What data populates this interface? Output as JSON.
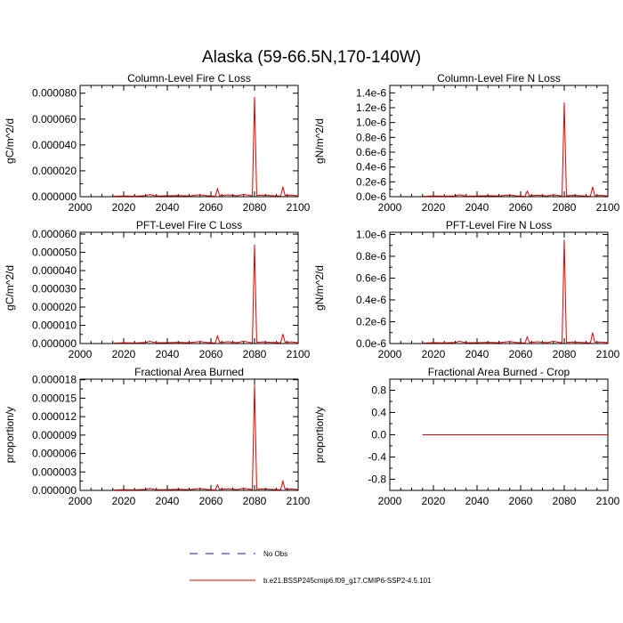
{
  "title": "Alaska (59-66.5N,170-140W)",
  "colors": {
    "series": "#e00000",
    "obs": "#1a1aaa",
    "axis": "#000000"
  },
  "legend": {
    "obs_label": "No Obs",
    "model_label": "b.e21.BSSP245cmip6.f09_g17.CMIP6-SSP2-4.5.101"
  },
  "chart_data": [
    {
      "type": "line",
      "title": "Column-Level Fire C Loss",
      "ylabel": "gC/m^2/d",
      "xlim": [
        2000,
        2100
      ],
      "ylim": [
        0,
        8.6e-05
      ],
      "x_ticks": [
        "2000",
        "2020",
        "2040",
        "2060",
        "2080",
        "2100"
      ],
      "y_ticks": [
        {
          "value": 0,
          "label": "0.000000"
        },
        {
          "value": 2e-05,
          "label": "0.000020"
        },
        {
          "value": 4e-05,
          "label": "0.000040"
        },
        {
          "value": 6e-05,
          "label": "0.000060"
        },
        {
          "value": 8e-05,
          "label": "0.000080"
        }
      ],
      "series": [
        {
          "x": [
            2015,
            2020,
            2025,
            2030,
            2032,
            2035,
            2040,
            2045,
            2050,
            2055,
            2058,
            2062,
            2063,
            2064,
            2068,
            2072,
            2075,
            2079,
            2080,
            2081,
            2084,
            2088,
            2092,
            2093,
            2094,
            2097,
            2100
          ],
          "y": [
            3e-07,
            6e-07,
            4e-07,
            8e-07,
            1.6e-06,
            5e-07,
            7e-07,
            9e-07,
            6e-07,
            1.5e-06,
            8e-07,
            4e-07,
            6.2e-06,
            8e-07,
            1.4e-06,
            7e-07,
            1.8e-06,
            6e-07,
            7.71e-05,
            9e-07,
            1.2e-06,
            8e-07,
            5e-07,
            7.7e-06,
            1e-06,
            1.2e-06,
            6e-07
          ]
        }
      ]
    },
    {
      "type": "line",
      "title": "Column-Level Fire N Loss",
      "ylabel": "gN/m^2/d",
      "xlim": [
        2000,
        2100
      ],
      "ylim": [
        0,
        1.5e-06
      ],
      "x_ticks": [
        "2000",
        "2020",
        "2040",
        "2060",
        "2080",
        "2100"
      ],
      "y_ticks": [
        {
          "value": 0,
          "label": "0.0e-6"
        },
        {
          "value": 2e-07,
          "label": "0.2e-6"
        },
        {
          "value": 4e-07,
          "label": "0.4e-6"
        },
        {
          "value": 6e-07,
          "label": "0.6e-6"
        },
        {
          "value": 8e-07,
          "label": "0.8e-6"
        },
        {
          "value": 1e-06,
          "label": "1.0e-6"
        },
        {
          "value": 1.2e-06,
          "label": "1.2e-6"
        },
        {
          "value": 1.4e-06,
          "label": "1.4e-6"
        }
      ],
      "series": [
        {
          "x": [
            2015,
            2020,
            2025,
            2030,
            2032,
            2035,
            2040,
            2045,
            2050,
            2055,
            2058,
            2062,
            2063,
            2064,
            2068,
            2072,
            2075,
            2079,
            2080,
            2081,
            2084,
            2088,
            2092,
            2093,
            2094,
            2097,
            2100
          ],
          "y": [
            5e-09,
            1e-08,
            7e-09,
            1.2e-08,
            2.5e-08,
            8e-09,
            1e-08,
            1.4e-08,
            1e-08,
            2.2e-08,
            1.2e-08,
            6e-09,
            7.5e-08,
            1.2e-08,
            2e-08,
            1e-08,
            2.6e-08,
            9e-09,
            1.27e-06,
            1.3e-08,
            1.8e-08,
            1.2e-08,
            8e-09,
            1.3e-07,
            1.5e-08,
            1.8e-08,
            9e-09
          ]
        }
      ]
    },
    {
      "type": "line",
      "title": "PFT-Level Fire C Loss",
      "ylabel": "gC/m^2/d",
      "xlim": [
        2000,
        2100
      ],
      "ylim": [
        0,
        6.1e-05
      ],
      "x_ticks": [
        "2000",
        "2020",
        "2040",
        "2060",
        "2080",
        "2100"
      ],
      "y_ticks": [
        {
          "value": 0,
          "label": "0.000000"
        },
        {
          "value": 1e-05,
          "label": "0.000010"
        },
        {
          "value": 2e-05,
          "label": "0.000020"
        },
        {
          "value": 3e-05,
          "label": "0.000030"
        },
        {
          "value": 4e-05,
          "label": "0.000040"
        },
        {
          "value": 5e-05,
          "label": "0.000050"
        },
        {
          "value": 6e-05,
          "label": "0.000060"
        }
      ],
      "series": [
        {
          "x": [
            2015,
            2020,
            2025,
            2030,
            2032,
            2035,
            2040,
            2045,
            2050,
            2055,
            2058,
            2062,
            2063,
            2064,
            2068,
            2072,
            2075,
            2079,
            2080,
            2081,
            2084,
            2088,
            2092,
            2093,
            2094,
            2097,
            2100
          ],
          "y": [
            2e-07,
            4e-07,
            3e-07,
            6e-07,
            1.2e-06,
            4e-07,
            5e-07,
            7e-07,
            5e-07,
            1.1e-06,
            6e-07,
            3e-07,
            4.2e-06,
            6e-07,
            1e-06,
            5e-07,
            1.3e-06,
            4e-07,
            5.42e-05,
            6e-07,
            9e-07,
            6e-07,
            4e-07,
            5.2e-06,
            7e-07,
            9e-07,
            4e-07
          ]
        }
      ]
    },
    {
      "type": "line",
      "title": "PFT-Level Fire N Loss",
      "ylabel": "gN/m^2/d",
      "xlim": [
        2000,
        2100
      ],
      "ylim": [
        0,
        1.02e-06
      ],
      "x_ticks": [
        "2000",
        "2020",
        "2040",
        "2060",
        "2080",
        "2100"
      ],
      "y_ticks": [
        {
          "value": 0,
          "label": "0.0e-6"
        },
        {
          "value": 2e-07,
          "label": "0.2e-6"
        },
        {
          "value": 4e-07,
          "label": "0.4e-6"
        },
        {
          "value": 6e-07,
          "label": "0.6e-6"
        },
        {
          "value": 8e-07,
          "label": "0.8e-6"
        },
        {
          "value": 1e-06,
          "label": "1.0e-6"
        }
      ],
      "series": [
        {
          "x": [
            2015,
            2020,
            2025,
            2030,
            2032,
            2035,
            2040,
            2045,
            2050,
            2055,
            2058,
            2062,
            2063,
            2064,
            2068,
            2072,
            2075,
            2079,
            2080,
            2081,
            2084,
            2088,
            2092,
            2093,
            2094,
            2097,
            2100
          ],
          "y": [
            4e-09,
            8e-09,
            6e-09,
            1e-08,
            2e-08,
            7e-09,
            8e-09,
            1.1e-08,
            8e-09,
            1.8e-08,
            1e-08,
            5e-09,
            6e-08,
            1e-08,
            1.6e-08,
            8e-09,
            2e-08,
            7e-09,
            9.5e-07,
            1e-08,
            1.4e-08,
            1e-08,
            6e-09,
            1e-07,
            1.2e-08,
            1.4e-08,
            7e-09
          ]
        }
      ]
    },
    {
      "type": "line",
      "title": "Fractional Area Burned",
      "ylabel": "proportion/y",
      "xlim": [
        2000,
        2100
      ],
      "ylim": [
        0,
        1.81e-05
      ],
      "x_ticks": [
        "2000",
        "2020",
        "2040",
        "2060",
        "2080",
        "2100"
      ],
      "y_ticks": [
        {
          "value": 0,
          "label": "0.000000"
        },
        {
          "value": 3e-06,
          "label": "0.000003"
        },
        {
          "value": 6e-06,
          "label": "0.000006"
        },
        {
          "value": 9e-06,
          "label": "0.000009"
        },
        {
          "value": 1.2e-05,
          "label": "0.000012"
        },
        {
          "value": 1.5e-05,
          "label": "0.000015"
        },
        {
          "value": 1.8e-05,
          "label": "0.000018"
        }
      ],
      "series": [
        {
          "x": [
            2015,
            2020,
            2025,
            2030,
            2032,
            2035,
            2040,
            2045,
            2050,
            2055,
            2058,
            2062,
            2063,
            2064,
            2068,
            2072,
            2075,
            2079,
            2080,
            2081,
            2084,
            2088,
            2092,
            2093,
            2094,
            2097,
            2100
          ],
          "y": [
            6e-08,
            1.2e-07,
            9e-08,
            1.6e-07,
            3.2e-07,
            1e-07,
            1.3e-07,
            1.8e-07,
            1.2e-07,
            3e-07,
            1.6e-07,
            8e-08,
            9e-07,
            1.6e-07,
            2.7e-07,
            1.3e-07,
            3.4e-07,
            1.2e-07,
            1.72e-05,
            1.8e-07,
            2.4e-07,
            1.6e-07,
            1e-07,
            1.5e-06,
            2e-07,
            2.4e-07,
            1.2e-07
          ]
        }
      ]
    },
    {
      "type": "line",
      "title": "Fractional Area Burned - Crop",
      "ylabel": "proportion/y",
      "xlim": [
        2000,
        2100
      ],
      "ylim": [
        -1.0,
        1.0
      ],
      "x_ticks": [
        "2000",
        "2020",
        "2040",
        "2060",
        "2080",
        "2100"
      ],
      "y_ticks": [
        {
          "value": -0.8,
          "label": "-0.8"
        },
        {
          "value": -0.4,
          "label": "-0.4"
        },
        {
          "value": 0,
          "label": "0.0"
        },
        {
          "value": 0.4,
          "label": "0.4"
        },
        {
          "value": 0.8,
          "label": "0.8"
        }
      ],
      "series": [
        {
          "x": [
            2015,
            2100
          ],
          "y": [
            0,
            0
          ]
        }
      ]
    }
  ]
}
